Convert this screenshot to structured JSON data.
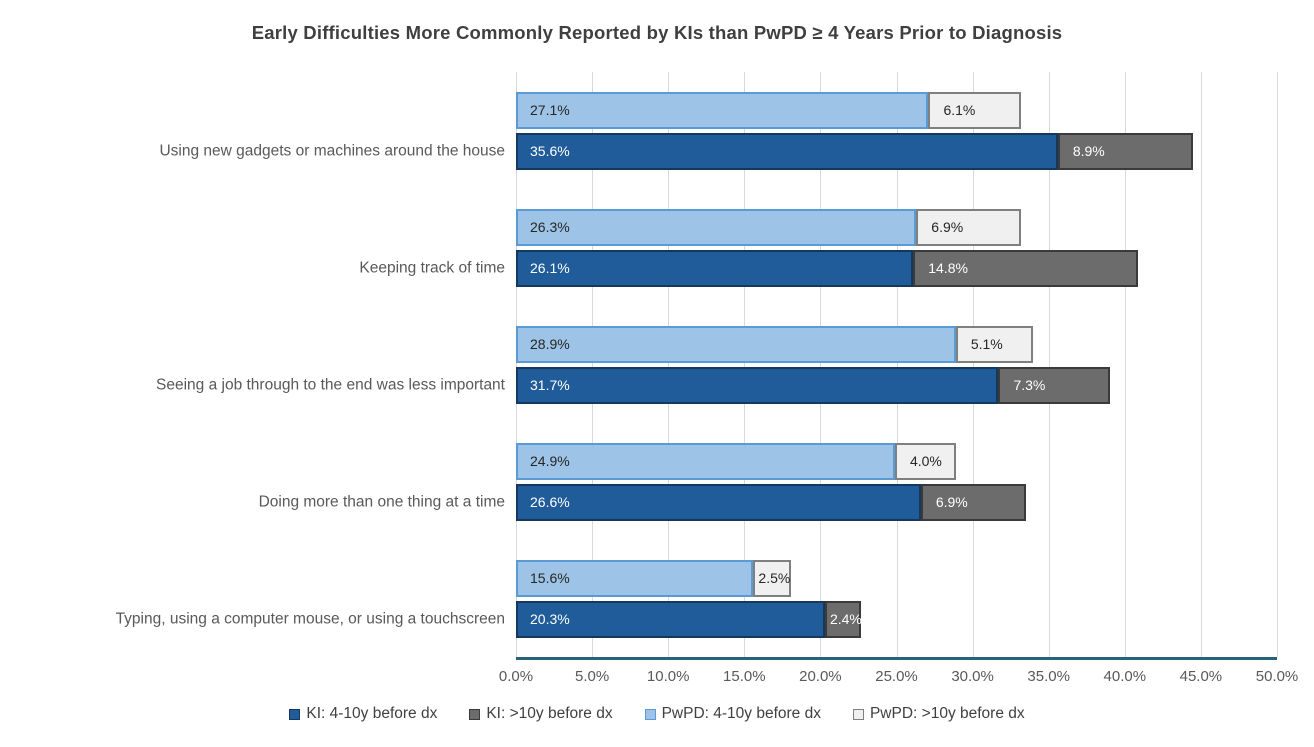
{
  "chart_data": {
    "type": "bar",
    "orientation": "horizontal",
    "stacked": true,
    "title": "Early Difficulties More Commonly Reported by KIs than PwPD ≥ 4 Years Prior to Diagnosis",
    "categories": [
      "Using new gadgets or machines around the house",
      "Keeping track of time",
      "Seeing a job through to the end was less important",
      "Doing more than one thing at a time",
      "Typing, using a computer mouse, or using a touchscreen"
    ],
    "series": [
      {
        "name": "KI: 4-10y before dx",
        "values": [
          35.6,
          26.1,
          31.7,
          26.6,
          20.3
        ],
        "labels": [
          "35.6%",
          "26.1%",
          "31.7%",
          "26.6%",
          "20.3%"
        ],
        "fill": "#1f5c99",
        "border": "#16385c",
        "label_color": "#ffffff"
      },
      {
        "name": "KI: >10y before dx",
        "values": [
          8.9,
          14.8,
          7.3,
          6.9,
          2.4
        ],
        "labels": [
          "8.9%",
          "14.8%",
          "7.3%",
          "6.9%",
          "2.4%"
        ],
        "fill": "#6c6c6c",
        "border": "#3a3a3a",
        "label_color": "#ffffff"
      },
      {
        "name": "PwPD: 4-10y before dx",
        "values": [
          27.1,
          26.3,
          28.9,
          24.9,
          15.6
        ],
        "labels": [
          "27.1%",
          "26.3%",
          "28.9%",
          "24.9%",
          "15.6%"
        ],
        "fill": "#9dc3e6",
        "border": "#5b9bd5",
        "label_color": "#262626"
      },
      {
        "name": "PwPD: >10y before dx",
        "values": [
          6.1,
          6.9,
          5.1,
          4.0,
          2.5
        ],
        "labels": [
          "6.1%",
          "6.9%",
          "5.1%",
          "4.0%",
          "2.5%"
        ],
        "fill": "#f0f0f0",
        "border": "#7f7f7f",
        "label_color": "#262626"
      }
    ],
    "bars_per_category": [
      {
        "name": "pwpd-bar",
        "segments": [
          2,
          3
        ]
      },
      {
        "name": "ki-bar",
        "segments": [
          0,
          1
        ]
      }
    ],
    "x_axis": {
      "min": 0,
      "max": 50,
      "tick_step": 5,
      "tick_labels": [
        "0.0%",
        "5.0%",
        "10.0%",
        "15.0%",
        "20.0%",
        "25.0%",
        "30.0%",
        "35.0%",
        "40.0%",
        "45.0%",
        "50.0%"
      ]
    },
    "grid": true,
    "legend_position": "bottom",
    "legend_order": [
      0,
      1,
      2,
      3
    ],
    "colors": {
      "gridline": "#d9d9d9",
      "axis_line": "#26627a",
      "title_text": "#3f3f3f",
      "axis_text": "#595959",
      "legend_text": "#404040",
      "background": "#ffffff"
    }
  }
}
